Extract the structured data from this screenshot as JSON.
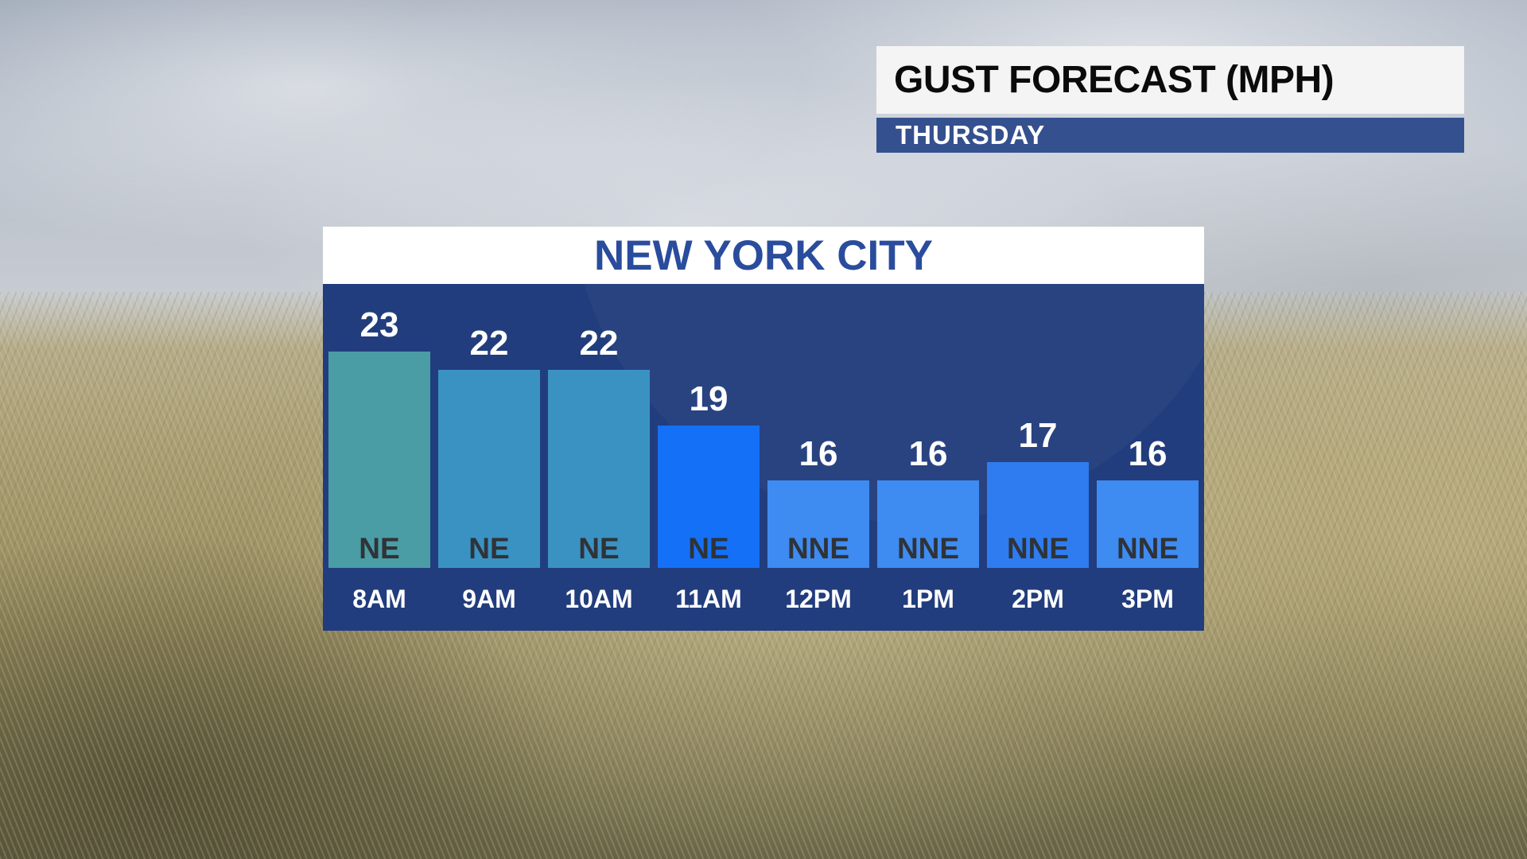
{
  "header": {
    "title": "GUST FORECAST (MPH)",
    "subtitle": "THURSDAY"
  },
  "panel": {
    "title": "NEW YORK CITY"
  },
  "chart_data": {
    "type": "bar",
    "title": "NEW YORK CITY",
    "subtitle": "GUST FORECAST (MPH) — THURSDAY",
    "unit": "MPH",
    "categories": [
      "8AM",
      "9AM",
      "10AM",
      "11AM",
      "12PM",
      "1PM",
      "2PM",
      "3PM"
    ],
    "values": [
      23,
      22,
      22,
      19,
      16,
      16,
      17,
      16
    ],
    "wind_directions": [
      "NE",
      "NE",
      "NE",
      "NE",
      "NNE",
      "NNE",
      "NNE",
      "NNE"
    ],
    "bar_colors": [
      "#4a9da5",
      "#3a92c3",
      "#3a92c3",
      "#1470f6",
      "#3e8bf2",
      "#3e8bf2",
      "#2e7cf0",
      "#3e8bf2"
    ],
    "value_labels_inside": false,
    "legend": "none",
    "gridlines": false,
    "axes_shown": false
  },
  "colors": {
    "chart_background": "#223d7d",
    "panel_header_background": "#ffffff",
    "panel_title_text": "#2a4c9d",
    "gust_header_background": "#f4f4f4",
    "gust_header_text": "#0b0b0b",
    "day_banner_background": "#35508f",
    "day_banner_text": "#ffffff",
    "value_label_text": "#ffffff",
    "direction_label_text": "#2f3338",
    "time_label_text": "#ffffff"
  }
}
